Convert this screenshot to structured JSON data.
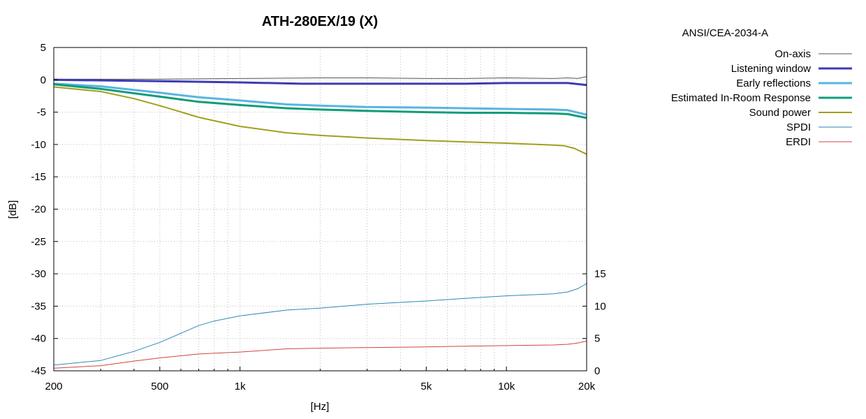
{
  "chart_data": {
    "type": "line",
    "title": "ATH-280EX/19 (X)",
    "standard": "ANSI/CEA-2034-A",
    "xlabel": "[Hz]",
    "ylabel": "[dB]",
    "x_scale": "log",
    "xlim": [
      200,
      20000
    ],
    "ylim": [
      -45,
      5
    ],
    "y2lim": [
      0,
      50
    ],
    "x_ticks": [
      {
        "value": 200,
        "label": "200"
      },
      {
        "value": 500,
        "label": "500"
      },
      {
        "value": 1000,
        "label": "1k"
      },
      {
        "value": 5000,
        "label": "5k"
      },
      {
        "value": 10000,
        "label": "10k"
      },
      {
        "value": 20000,
        "label": "20k"
      }
    ],
    "y_ticks": [
      {
        "value": 5,
        "label": "5"
      },
      {
        "value": 0,
        "label": "0"
      },
      {
        "value": -5,
        "label": "-5"
      },
      {
        "value": -10,
        "label": "-10"
      },
      {
        "value": -15,
        "label": "-15"
      },
      {
        "value": -20,
        "label": "-20"
      },
      {
        "value": -25,
        "label": "-25"
      },
      {
        "value": -30,
        "label": "-30"
      },
      {
        "value": -35,
        "label": "-35"
      },
      {
        "value": -40,
        "label": "-40"
      },
      {
        "value": -45,
        "label": "-45"
      }
    ],
    "y2_ticks": [
      {
        "value": 0,
        "label": "0"
      },
      {
        "value": 5,
        "label": "5"
      },
      {
        "value": 10,
        "label": "10"
      },
      {
        "value": 15,
        "label": "15"
      }
    ],
    "grid": true,
    "legend_position": "right",
    "series": [
      {
        "name": "On-axis",
        "color": "#555555",
        "width": 1,
        "axis": "y1",
        "x": [
          200,
          500,
          1000,
          2000,
          3000,
          5000,
          7000,
          10000,
          15000,
          17000,
          18500,
          20000
        ],
        "y": [
          0.1,
          0.1,
          0.2,
          0.3,
          0.3,
          0.2,
          0.2,
          0.3,
          0.2,
          0.3,
          0.2,
          0.5
        ]
      },
      {
        "name": "Listening window",
        "color": "#3b3bb5",
        "width": 3,
        "axis": "y1",
        "x": [
          200,
          500,
          1000,
          1700,
          3000,
          5000,
          7000,
          10000,
          15000,
          17000,
          20000
        ],
        "y": [
          0.0,
          -0.2,
          -0.4,
          -0.6,
          -0.6,
          -0.6,
          -0.6,
          -0.5,
          -0.5,
          -0.5,
          -0.8
        ]
      },
      {
        "name": "Early reflections",
        "color": "#5ab4e0",
        "width": 3,
        "axis": "y1",
        "x": [
          200,
          300,
          500,
          700,
          1000,
          1500,
          2000,
          3000,
          5000,
          7000,
          10000,
          15000,
          17000,
          20000
        ],
        "y": [
          -0.6,
          -1.0,
          -2.0,
          -2.7,
          -3.2,
          -3.8,
          -4.0,
          -4.2,
          -4.3,
          -4.4,
          -4.5,
          -4.6,
          -4.7,
          -5.4
        ]
      },
      {
        "name": "Estimated In-Room Response",
        "color": "#109c7a",
        "width": 3,
        "axis": "y1",
        "x": [
          200,
          300,
          500,
          700,
          1000,
          1500,
          2000,
          3000,
          5000,
          7000,
          10000,
          15000,
          17000,
          20000
        ],
        "y": [
          -0.7,
          -1.4,
          -2.6,
          -3.4,
          -3.9,
          -4.4,
          -4.6,
          -4.8,
          -5.0,
          -5.1,
          -5.1,
          -5.2,
          -5.3,
          -5.9
        ]
      },
      {
        "name": "Sound power",
        "color": "#a0a01e",
        "width": 2,
        "axis": "y1",
        "x": [
          200,
          300,
          400,
          500,
          700,
          1000,
          1500,
          2000,
          3000,
          5000,
          7000,
          10000,
          15000,
          16500,
          18000,
          20000
        ],
        "y": [
          -1.1,
          -1.8,
          -2.9,
          -4.0,
          -5.8,
          -7.2,
          -8.2,
          -8.6,
          -9.0,
          -9.4,
          -9.6,
          -9.8,
          -10.1,
          -10.2,
          -10.6,
          -11.5
        ]
      },
      {
        "name": "SPDI",
        "color": "#2a8ab5",
        "width": 1,
        "axis": "y2",
        "x": [
          200,
          300,
          400,
          500,
          600,
          700,
          800,
          1000,
          1500,
          2000,
          3000,
          5000,
          7000,
          10000,
          15000,
          17000,
          18500,
          20000
        ],
        "y": [
          0.9,
          1.6,
          3.0,
          4.4,
          5.8,
          7.0,
          7.7,
          8.5,
          9.4,
          9.7,
          10.3,
          10.8,
          11.2,
          11.6,
          11.9,
          12.2,
          12.7,
          13.5
        ]
      },
      {
        "name": "ERDI",
        "color": "#d1453b",
        "width": 1,
        "axis": "y2",
        "x": [
          200,
          300,
          400,
          500,
          700,
          1000,
          1500,
          2000,
          3000,
          5000,
          7000,
          10000,
          15000,
          17000,
          18500,
          20000
        ],
        "y": [
          0.4,
          0.8,
          1.5,
          2.0,
          2.6,
          2.9,
          3.4,
          3.5,
          3.6,
          3.7,
          3.8,
          3.9,
          4.0,
          4.1,
          4.3,
          4.6
        ]
      }
    ]
  }
}
